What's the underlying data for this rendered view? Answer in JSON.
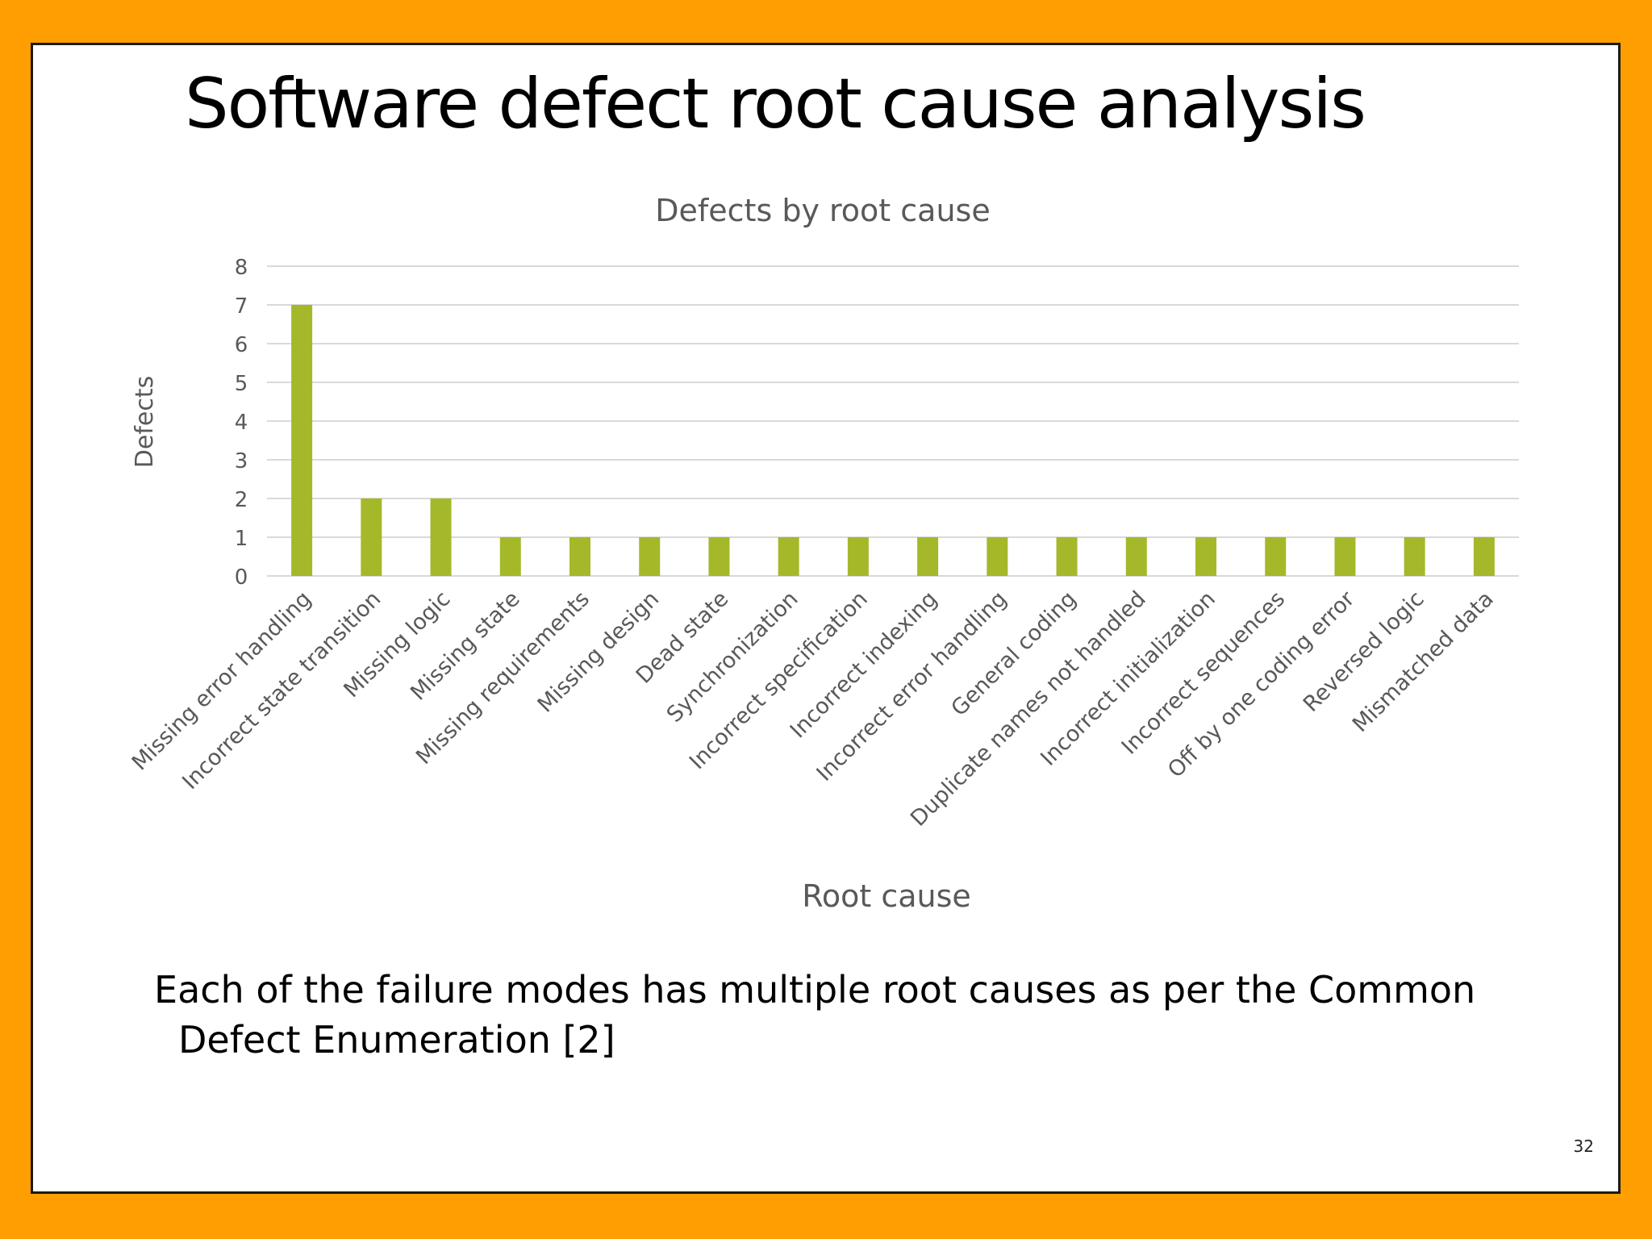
{
  "slide": {
    "title": "Software defect root cause analysis",
    "body_text": "Each of the failure modes has multiple root causes as per the Common Defect Enumeration [2]",
    "page_number": "32"
  },
  "chart_data": {
    "type": "bar",
    "title": "Defects by root cause",
    "xlabel": "Root cause",
    "ylabel": "Defects",
    "ylim": [
      0,
      8
    ],
    "yticks": [
      0,
      1,
      2,
      3,
      4,
      5,
      6,
      7,
      8
    ],
    "grid": true,
    "legend": "none",
    "bar_color": "#a5b82a",
    "categories": [
      "Missing error handling",
      "Incorrect state transition",
      "Missing logic",
      "Missing state",
      "Missing requirements",
      "Missing design",
      "Dead state",
      "Synchronization",
      "Incorrect specification",
      "Incorrect indexing",
      "Incorrect error handling",
      "General coding",
      "Duplicate names not handled",
      "Incorrect initialization",
      "Incorrect sequences",
      "Off by one coding error",
      "Reversed logic",
      "Mismatched data"
    ],
    "values": [
      7,
      2,
      2,
      1,
      1,
      1,
      1,
      1,
      1,
      1,
      1,
      1,
      1,
      1,
      1,
      1,
      1,
      1
    ]
  }
}
